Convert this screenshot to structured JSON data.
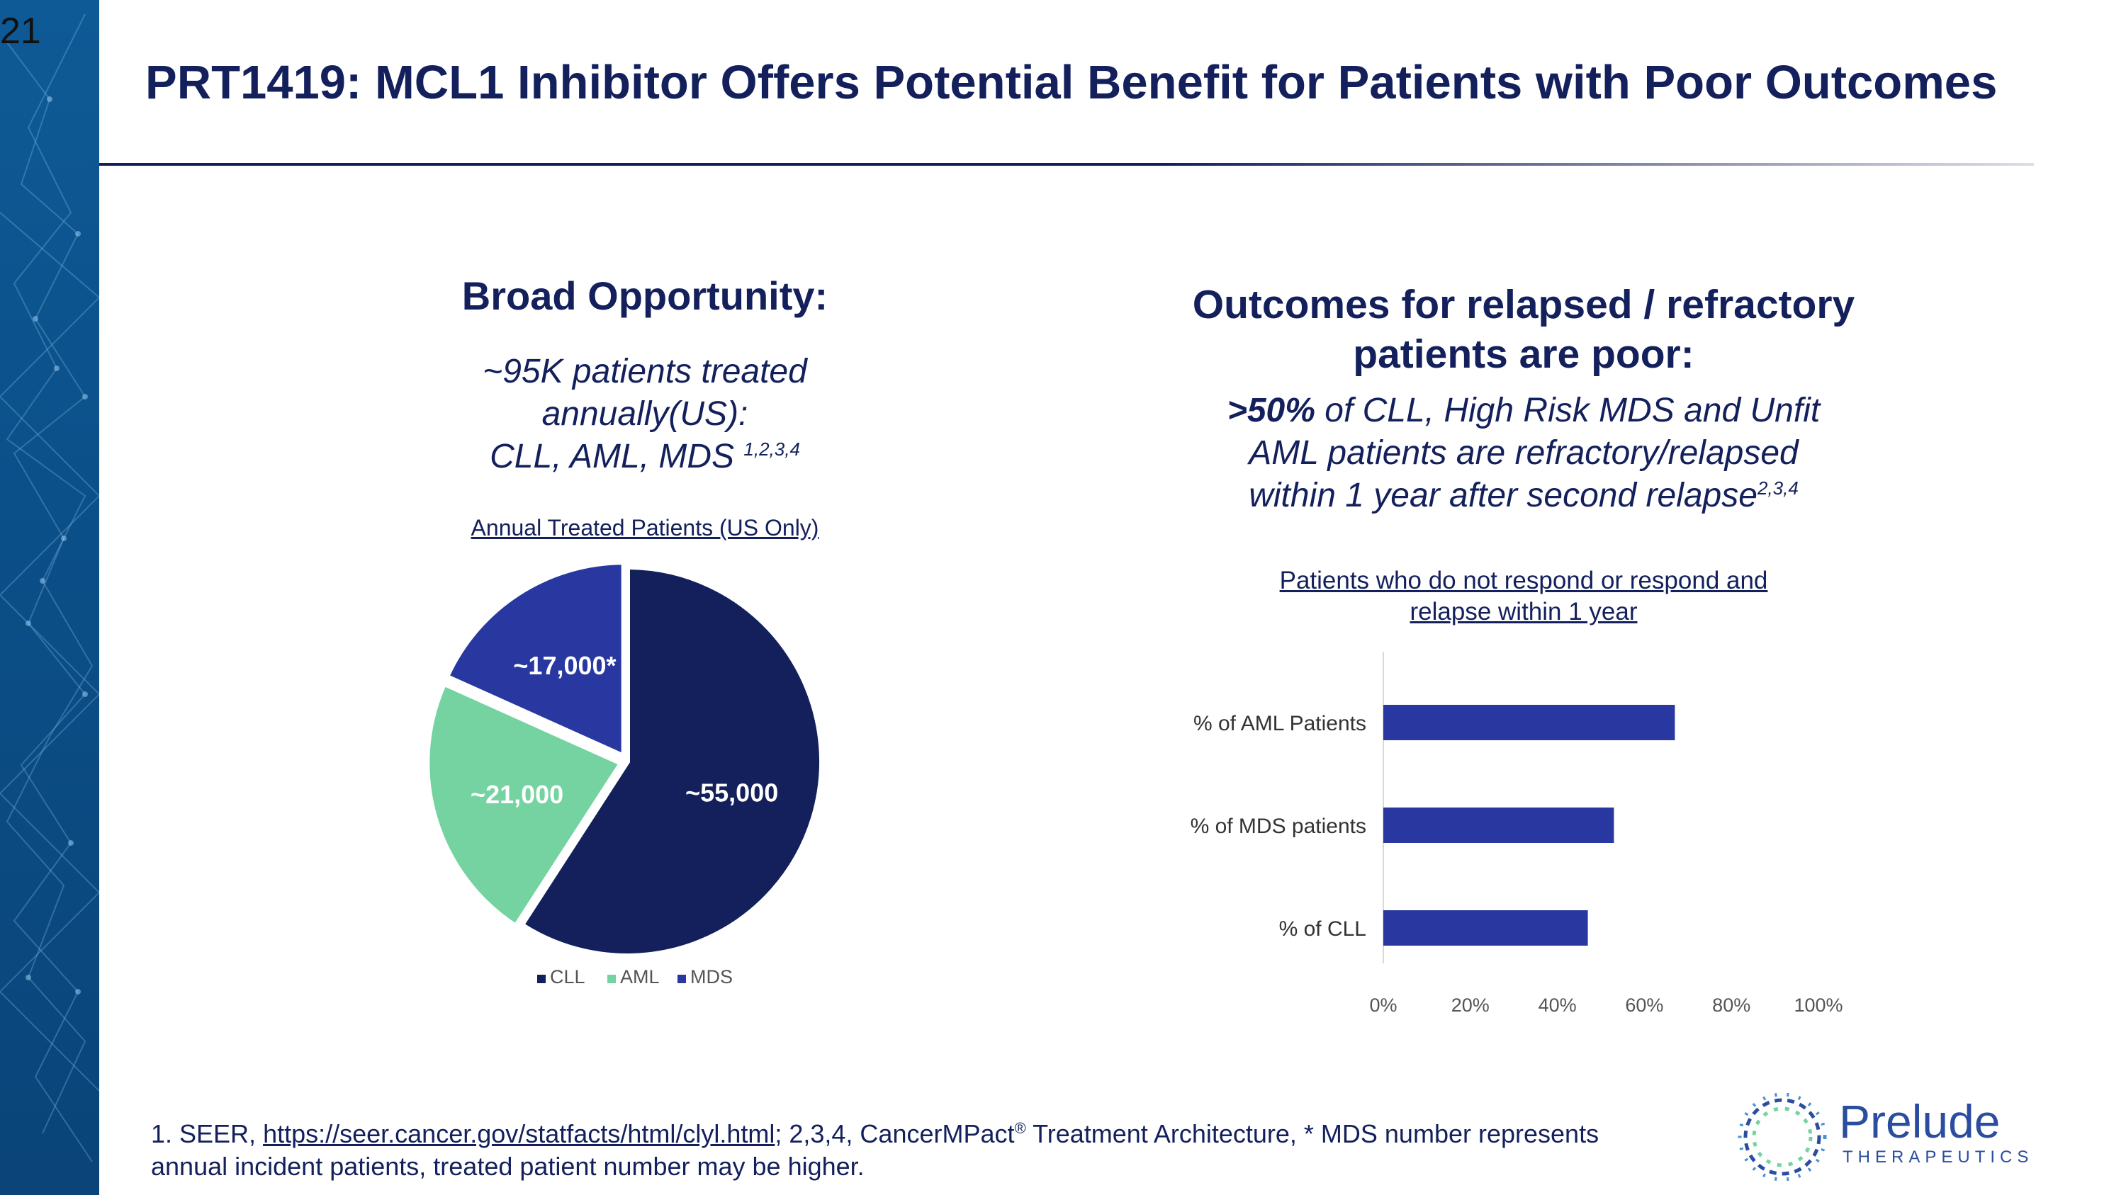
{
  "slide": {
    "number": "21",
    "title": "PRT1419:  MCL1 Inhibitor Offers Potential Benefit for Patients with Poor Outcomes"
  },
  "left": {
    "heading": "Broad Opportunity:",
    "sub_line1": "~95K patients treated",
    "sub_line2": "annually(US):",
    "sub_line3": "CLL, AML, MDS ",
    "sub_sup": "1,2,3,4"
  },
  "right": {
    "heading_line1": "Outcomes for relapsed / refractory",
    "heading_line2": "patients are poor:",
    "sub_bold": ">50%",
    "sub_line1_rest": " of CLL, High Risk MDS and Unfit",
    "sub_line2": "AML patients are refractory/relapsed",
    "sub_line3": "within 1 year after second relapse",
    "sub_sup": "2,3,4"
  },
  "chart_data": [
    {
      "type": "pie",
      "title": "Annual Treated Patients (US Only)",
      "categories": [
        "CLL",
        "AML",
        "MDS"
      ],
      "values": [
        55000,
        21000,
        17000
      ],
      "labels": [
        "~55,000",
        "~21,000",
        "~17,000*"
      ],
      "colors": [
        "#13205c",
        "#74d3a0",
        "#2838a0"
      ],
      "legend": "bottom"
    },
    {
      "type": "bar",
      "orientation": "horizontal",
      "title_line1": "Patients who do not respond or respond and",
      "title_line2": "relapse within 1 year",
      "categories": [
        "% of AML Patients",
        "% of MDS patients",
        "% of CLL"
      ],
      "values": [
        67,
        53,
        47
      ],
      "xlim": [
        0,
        100
      ],
      "xticks": [
        "0%",
        "20%",
        "40%",
        "60%",
        "80%",
        "100%"
      ],
      "color": "#2838a0",
      "grid": false
    }
  ],
  "footnote": {
    "prefix": "1. SEER, ",
    "link": "https://seer.cancer.gov/statfacts/html/clyl.html",
    "mid": ";  2,3,4, CancerMPact",
    "reg": "®",
    "rest": " Treatment Architecture, * MDS number represents",
    "line2": "annual incident patients, treated patient number may be higher."
  },
  "logo": {
    "name": "Prelude",
    "subtitle": "THERAPEUTICS"
  }
}
